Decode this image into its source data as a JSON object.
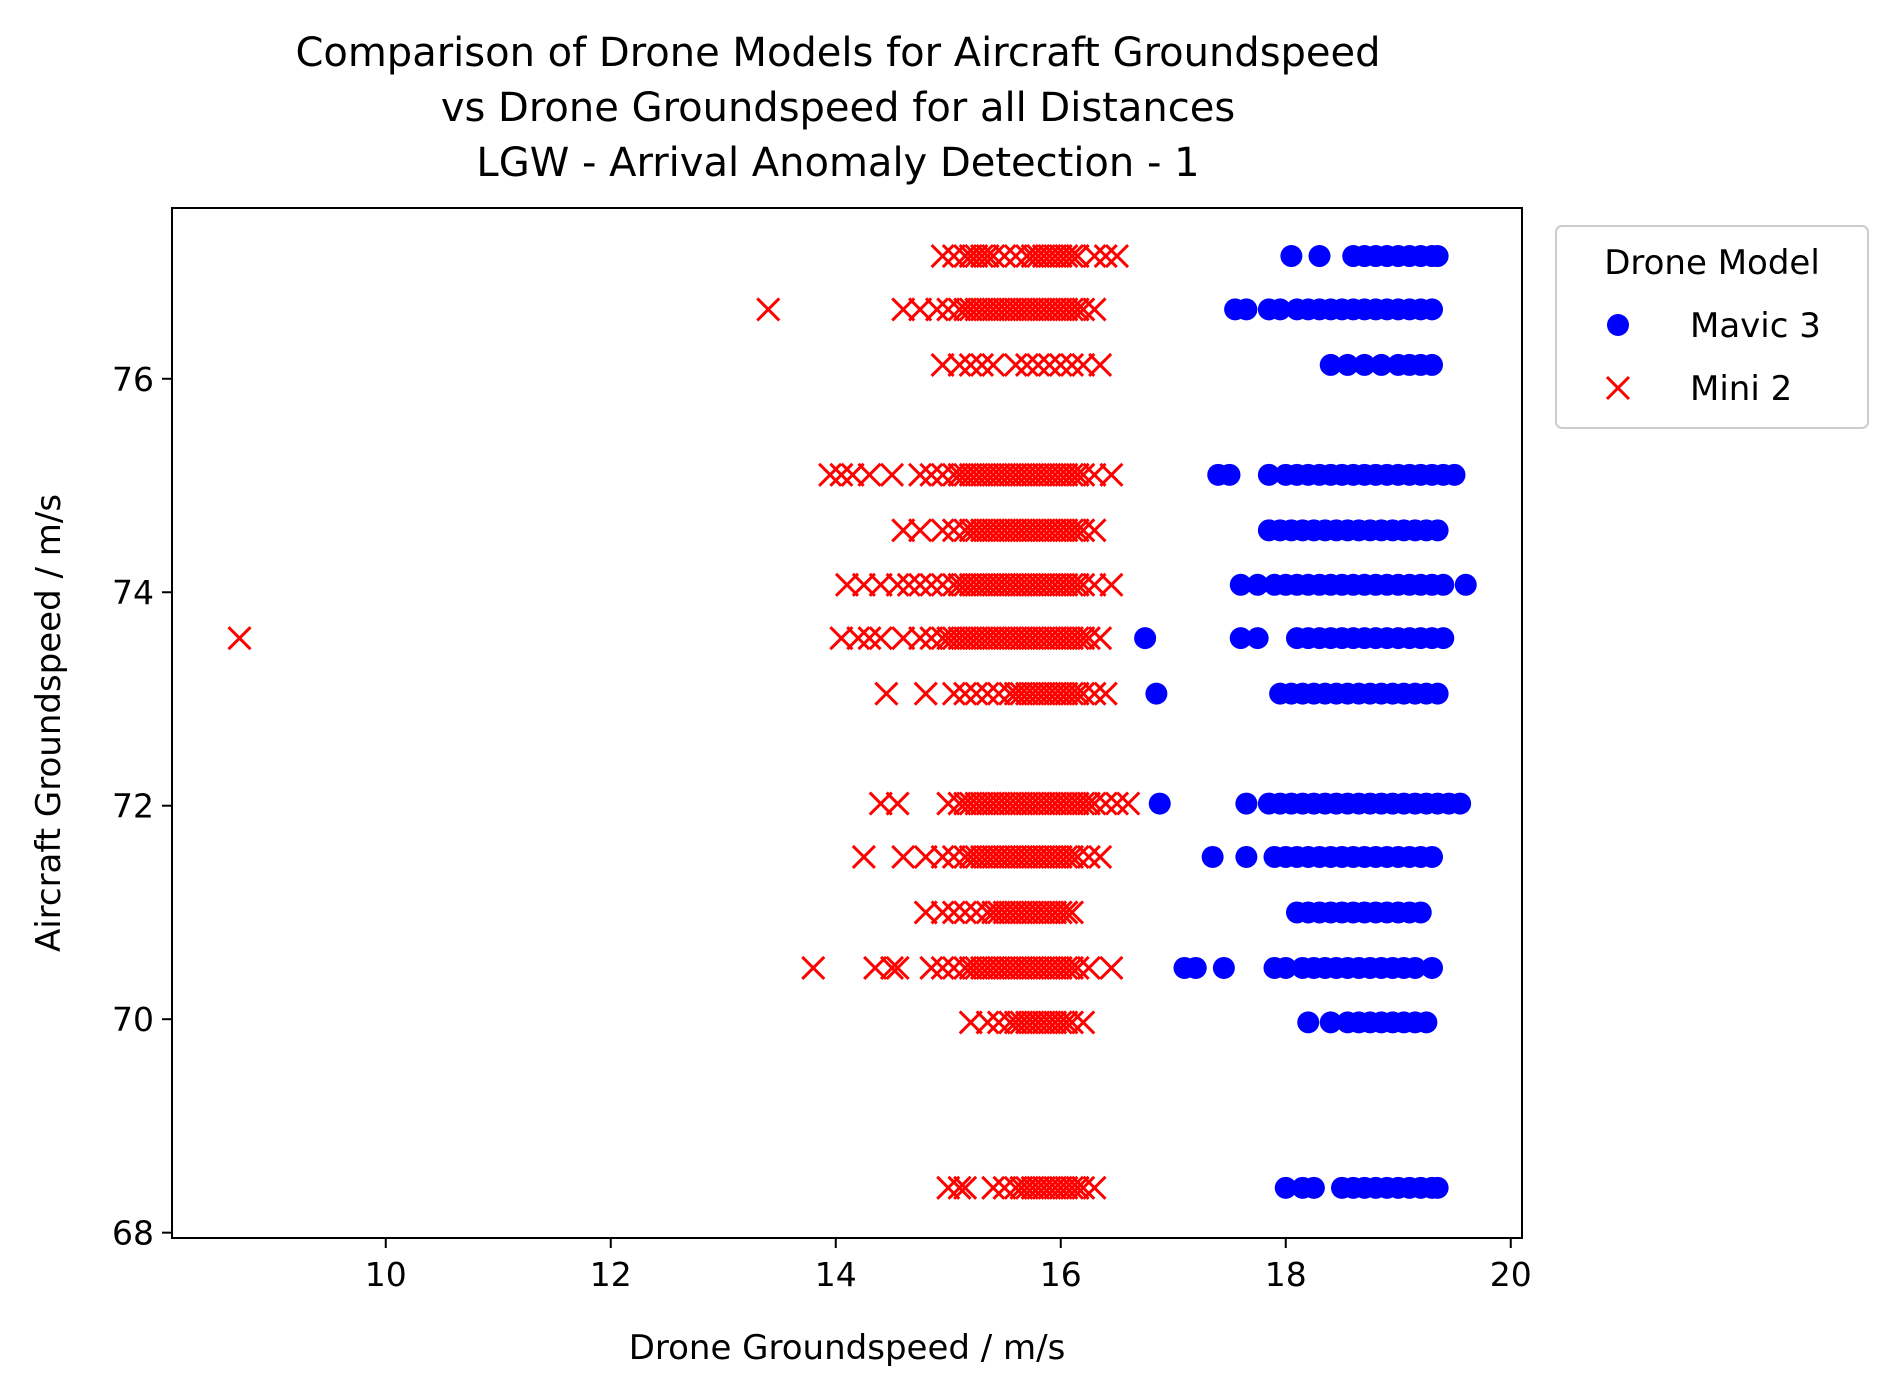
{
  "chart_data": {
    "type": "scatter",
    "title": [
      "Comparison of Drone Models for Aircraft Groundspeed",
      "vs Drone Groundspeed for all Distances",
      "LGW - Arrival Anomaly Detection - 1"
    ],
    "xlabel": "Drone Groundspeed / m/s",
    "ylabel": "Aircraft Groundspeed / m/s",
    "xlim": [
      8.1,
      20.1
    ],
    "ylim": [
      67.95,
      77.6
    ],
    "xticks": [
      10,
      12,
      14,
      16,
      18,
      20
    ],
    "yticks": [
      68,
      70,
      72,
      74,
      76
    ],
    "grid": false,
    "legend": {
      "title": "Drone Model",
      "placement": "outside-top-right"
    },
    "series": [
      {
        "name": "Mavic 3",
        "marker": "circle",
        "color": "#0000ff",
        "groups": [
          {
            "y": 77.15,
            "x": [
              18.05,
              18.3,
              18.6,
              18.7,
              18.8,
              18.9,
              19.0,
              19.1,
              19.2,
              19.3,
              19.35
            ]
          },
          {
            "y": 76.65,
            "x": [
              17.55,
              17.65,
              17.85,
              17.95,
              18.1,
              18.2,
              18.3,
              18.4,
              18.5,
              18.6,
              18.7,
              18.8,
              18.9,
              19.0,
              19.1,
              19.2,
              19.3
            ]
          },
          {
            "y": 76.13,
            "x": [
              18.4,
              18.55,
              18.7,
              18.85,
              19.0,
              19.1,
              19.2,
              19.3
            ]
          },
          {
            "y": 75.1,
            "x": [
              17.4,
              17.5,
              17.85,
              18.0,
              18.1,
              18.2,
              18.3,
              18.4,
              18.5,
              18.6,
              18.7,
              18.8,
              18.9,
              19.0,
              19.1,
              19.2,
              19.3,
              19.4,
              19.5
            ]
          },
          {
            "y": 74.58,
            "x": [
              17.85,
              17.95,
              18.05,
              18.15,
              18.25,
              18.35,
              18.45,
              18.55,
              18.65,
              18.75,
              18.85,
              18.95,
              19.05,
              19.15,
              19.25,
              19.35
            ]
          },
          {
            "y": 74.07,
            "x": [
              17.6,
              17.75,
              17.9,
              18.0,
              18.1,
              18.2,
              18.3,
              18.4,
              18.5,
              18.6,
              18.7,
              18.8,
              18.9,
              19.0,
              19.1,
              19.2,
              19.3,
              19.4,
              19.6
            ]
          },
          {
            "y": 73.57,
            "x": [
              16.75,
              17.6,
              17.75,
              18.1,
              18.2,
              18.3,
              18.4,
              18.5,
              18.6,
              18.7,
              18.8,
              18.9,
              19.0,
              19.1,
              19.2,
              19.3,
              19.4
            ]
          },
          {
            "y": 73.05,
            "x": [
              16.85,
              17.95,
              18.05,
              18.15,
              18.25,
              18.35,
              18.45,
              18.55,
              18.65,
              18.75,
              18.85,
              18.95,
              19.05,
              19.15,
              19.25,
              19.35
            ]
          },
          {
            "y": 72.02,
            "x": [
              16.88,
              17.65,
              17.85,
              17.95,
              18.05,
              18.15,
              18.25,
              18.35,
              18.45,
              18.55,
              18.65,
              18.75,
              18.85,
              18.95,
              19.05,
              19.15,
              19.25,
              19.35,
              19.45,
              19.55
            ]
          },
          {
            "y": 71.52,
            "x": [
              17.35,
              17.65,
              17.9,
              18.0,
              18.1,
              18.2,
              18.3,
              18.4,
              18.5,
              18.6,
              18.7,
              18.8,
              18.9,
              19.0,
              19.1,
              19.2,
              19.3
            ]
          },
          {
            "y": 71.0,
            "x": [
              18.1,
              18.2,
              18.3,
              18.4,
              18.5,
              18.6,
              18.7,
              18.8,
              18.9,
              19.0,
              19.1,
              19.2
            ]
          },
          {
            "y": 70.48,
            "x": [
              17.1,
              17.2,
              17.45,
              17.9,
              18.0,
              18.15,
              18.25,
              18.35,
              18.45,
              18.55,
              18.65,
              18.75,
              18.85,
              18.95,
              19.05,
              19.15,
              19.3
            ]
          },
          {
            "y": 69.97,
            "x": [
              18.2,
              18.4,
              18.55,
              18.65,
              18.75,
              18.85,
              18.95,
              19.05,
              19.15,
              19.25
            ]
          },
          {
            "y": 68.42,
            "x": [
              18.0,
              18.15,
              18.25,
              18.5,
              18.6,
              18.7,
              18.8,
              18.9,
              19.0,
              19.1,
              19.2,
              19.3,
              19.35
            ]
          }
        ]
      },
      {
        "name": "Mini 2",
        "marker": "x",
        "color": "#ff0000",
        "groups": [
          {
            "y": 77.15,
            "x": [
              14.95,
              15.05,
              15.15,
              15.2,
              15.25,
              15.3,
              15.35,
              15.4,
              15.5,
              15.6,
              15.7,
              15.75,
              15.8,
              15.85,
              15.9,
              15.95,
              16.0,
              16.05,
              16.1,
              16.15,
              16.3,
              16.4,
              16.5
            ]
          },
          {
            "y": 76.65,
            "x": [
              13.4,
              14.6,
              14.75,
              14.9,
              15.0,
              15.1,
              15.15,
              15.2,
              15.25,
              15.3,
              15.35,
              15.4,
              15.45,
              15.5,
              15.55,
              15.6,
              15.65,
              15.7,
              15.75,
              15.8,
              15.85,
              15.9,
              15.95,
              16.0,
              16.05,
              16.1,
              16.15,
              16.2,
              16.3
            ]
          },
          {
            "y": 76.13,
            "x": [
              14.95,
              15.1,
              15.2,
              15.3,
              15.4,
              15.6,
              15.7,
              15.8,
              15.9,
              16.0,
              16.1,
              16.2,
              16.35
            ]
          },
          {
            "y": 75.1,
            "x": [
              13.95,
              14.05,
              14.15,
              14.3,
              14.5,
              14.75,
              14.85,
              14.95,
              15.05,
              15.1,
              15.15,
              15.2,
              15.25,
              15.3,
              15.35,
              15.4,
              15.45,
              15.5,
              15.55,
              15.6,
              15.65,
              15.7,
              15.75,
              15.8,
              15.85,
              15.9,
              15.95,
              16.0,
              16.05,
              16.1,
              16.15,
              16.2,
              16.3,
              16.45
            ]
          },
          {
            "y": 74.58,
            "x": [
              14.6,
              14.75,
              14.95,
              15.05,
              15.15,
              15.2,
              15.25,
              15.3,
              15.35,
              15.4,
              15.45,
              15.5,
              15.55,
              15.6,
              15.65,
              15.7,
              15.75,
              15.8,
              15.85,
              15.9,
              15.95,
              16.0,
              16.05,
              16.1,
              16.15,
              16.2,
              16.3
            ]
          },
          {
            "y": 74.07,
            "x": [
              14.1,
              14.25,
              14.4,
              14.55,
              14.65,
              14.75,
              14.85,
              14.95,
              15.05,
              15.1,
              15.15,
              15.2,
              15.25,
              15.3,
              15.35,
              15.4,
              15.45,
              15.5,
              15.55,
              15.6,
              15.65,
              15.7,
              15.75,
              15.8,
              15.85,
              15.9,
              15.95,
              16.0,
              16.05,
              16.1,
              16.15,
              16.2,
              16.3,
              16.45
            ]
          },
          {
            "y": 73.57,
            "x": [
              8.7,
              14.05,
              14.2,
              14.3,
              14.4,
              14.6,
              14.75,
              14.85,
              14.95,
              15.0,
              15.05,
              15.1,
              15.15,
              15.2,
              15.25,
              15.3,
              15.35,
              15.4,
              15.45,
              15.5,
              15.55,
              15.6,
              15.65,
              15.7,
              15.75,
              15.8,
              15.85,
              15.9,
              15.95,
              16.0,
              16.05,
              16.1,
              16.15,
              16.2,
              16.25,
              16.35
            ]
          },
          {
            "y": 73.05,
            "x": [
              14.45,
              14.8,
              15.05,
              15.15,
              15.25,
              15.35,
              15.45,
              15.55,
              15.6,
              15.65,
              15.7,
              15.75,
              15.8,
              15.85,
              15.9,
              15.95,
              16.0,
              16.05,
              16.1,
              16.15,
              16.2,
              16.3,
              16.4
            ]
          },
          {
            "y": 72.02,
            "x": [
              14.4,
              14.55,
              15.0,
              15.1,
              15.15,
              15.2,
              15.25,
              15.3,
              15.35,
              15.4,
              15.45,
              15.5,
              15.55,
              15.6,
              15.65,
              15.7,
              15.75,
              15.8,
              15.85,
              15.9,
              15.95,
              16.0,
              16.05,
              16.1,
              16.15,
              16.2,
              16.25,
              16.3,
              16.4,
              16.5,
              16.6
            ]
          },
          {
            "y": 71.52,
            "x": [
              14.25,
              14.6,
              14.8,
              14.95,
              15.05,
              15.15,
              15.2,
              15.25,
              15.3,
              15.35,
              15.4,
              15.45,
              15.5,
              15.55,
              15.6,
              15.65,
              15.7,
              15.75,
              15.8,
              15.85,
              15.9,
              15.95,
              16.0,
              16.05,
              16.1,
              16.15,
              16.25,
              16.35
            ]
          },
          {
            "y": 71.0,
            "x": [
              14.8,
              14.95,
              15.05,
              15.15,
              15.25,
              15.35,
              15.4,
              15.45,
              15.5,
              15.55,
              15.6,
              15.65,
              15.7,
              15.75,
              15.8,
              15.85,
              15.9,
              15.95,
              16.0,
              16.05,
              16.1
            ]
          },
          {
            "y": 70.48,
            "x": [
              13.8,
              14.35,
              14.5,
              14.55,
              14.85,
              14.95,
              15.05,
              15.15,
              15.2,
              15.25,
              15.3,
              15.35,
              15.4,
              15.45,
              15.5,
              15.55,
              15.6,
              15.65,
              15.7,
              15.75,
              15.8,
              15.85,
              15.9,
              15.95,
              16.0,
              16.05,
              16.1,
              16.15,
              16.25,
              16.45
            ]
          },
          {
            "y": 69.97,
            "x": [
              15.2,
              15.35,
              15.45,
              15.55,
              15.6,
              15.65,
              15.7,
              15.75,
              15.8,
              15.85,
              15.9,
              15.95,
              16.0,
              16.05,
              16.1,
              16.2
            ]
          },
          {
            "y": 68.42,
            "x": [
              15.0,
              15.1,
              15.15,
              15.4,
              15.5,
              15.6,
              15.65,
              15.7,
              15.75,
              15.8,
              15.85,
              15.9,
              15.95,
              16.0,
              16.05,
              16.1,
              16.15,
              16.2,
              16.3
            ]
          }
        ]
      }
    ]
  }
}
